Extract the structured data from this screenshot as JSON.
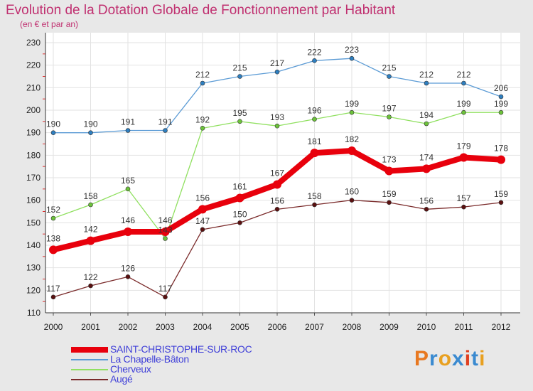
{
  "chart_data": {
    "type": "line",
    "title": "Evolution de la Dotation Globale de Fonctionnement par Habitant",
    "subtitle": "(en € et par an)",
    "xlabel": "",
    "ylabel": "",
    "categories": [
      "2000",
      "2001",
      "2002",
      "2003",
      "2004",
      "2005",
      "2006",
      "2007",
      "2008",
      "2009",
      "2010",
      "2011",
      "2012"
    ],
    "ylim": [
      110,
      230
    ],
    "yticks": [
      110,
      120,
      130,
      140,
      150,
      160,
      170,
      180,
      190,
      200,
      210,
      220,
      230
    ],
    "grid": true,
    "legend_position": "bottom-left",
    "series": [
      {
        "name": "La Chapelle-Bâton",
        "color": "#5b9bd5",
        "marker": "#2e7fc0",
        "emphasis": false,
        "values": [
          190,
          190,
          191,
          191,
          212,
          215,
          217,
          222,
          223,
          215,
          212,
          212,
          206
        ]
      },
      {
        "name": "Cherveux",
        "color": "#90e060",
        "marker": "#6cc23a",
        "emphasis": false,
        "values": [
          152,
          158,
          165,
          143,
          192,
          195,
          193,
          196,
          199,
          197,
          194,
          199,
          199
        ]
      },
      {
        "name": "Augé",
        "color": "#7a2a2a",
        "marker": "#5a1010",
        "emphasis": false,
        "values": [
          117,
          122,
          126,
          117,
          147,
          150,
          156,
          158,
          160,
          159,
          156,
          157,
          159
        ]
      },
      {
        "name": "SAINT-CHRISTOPHE-SUR-ROC",
        "color": "#e8000c",
        "marker": "#e8000c",
        "emphasis": true,
        "values": [
          138,
          142,
          146,
          146,
          156,
          161,
          167,
          181,
          182,
          173,
          174,
          179,
          178
        ]
      }
    ],
    "legend_order": [
      3,
      0,
      1,
      2
    ],
    "data_labels": [
      [
        "190",
        "190",
        "191",
        "191",
        "212",
        "215",
        "217",
        "222",
        "223",
        "215",
        "212",
        "212",
        "206"
      ],
      [
        "152",
        "158",
        "165",
        "143",
        "192",
        "195",
        "193",
        "196",
        "199",
        "197",
        "194",
        "199",
        "199"
      ],
      [
        "117",
        "122",
        "126",
        "117",
        "147",
        "150",
        "156",
        "158",
        "160",
        "159",
        "156",
        "157",
        "159"
      ],
      [
        "138",
        "142",
        "146",
        "146",
        "156",
        "161",
        "167",
        "181",
        "182",
        "173",
        "174",
        "179",
        "178"
      ]
    ]
  },
  "logo": {
    "letters": [
      "P",
      "r",
      "o",
      "x",
      "i",
      "t",
      "i"
    ],
    "colors": [
      "#e87820",
      "#3a8ad0",
      "#e8a020",
      "#3a8ad0",
      "#e04020",
      "#3a8ad0",
      "#e8a020"
    ]
  }
}
